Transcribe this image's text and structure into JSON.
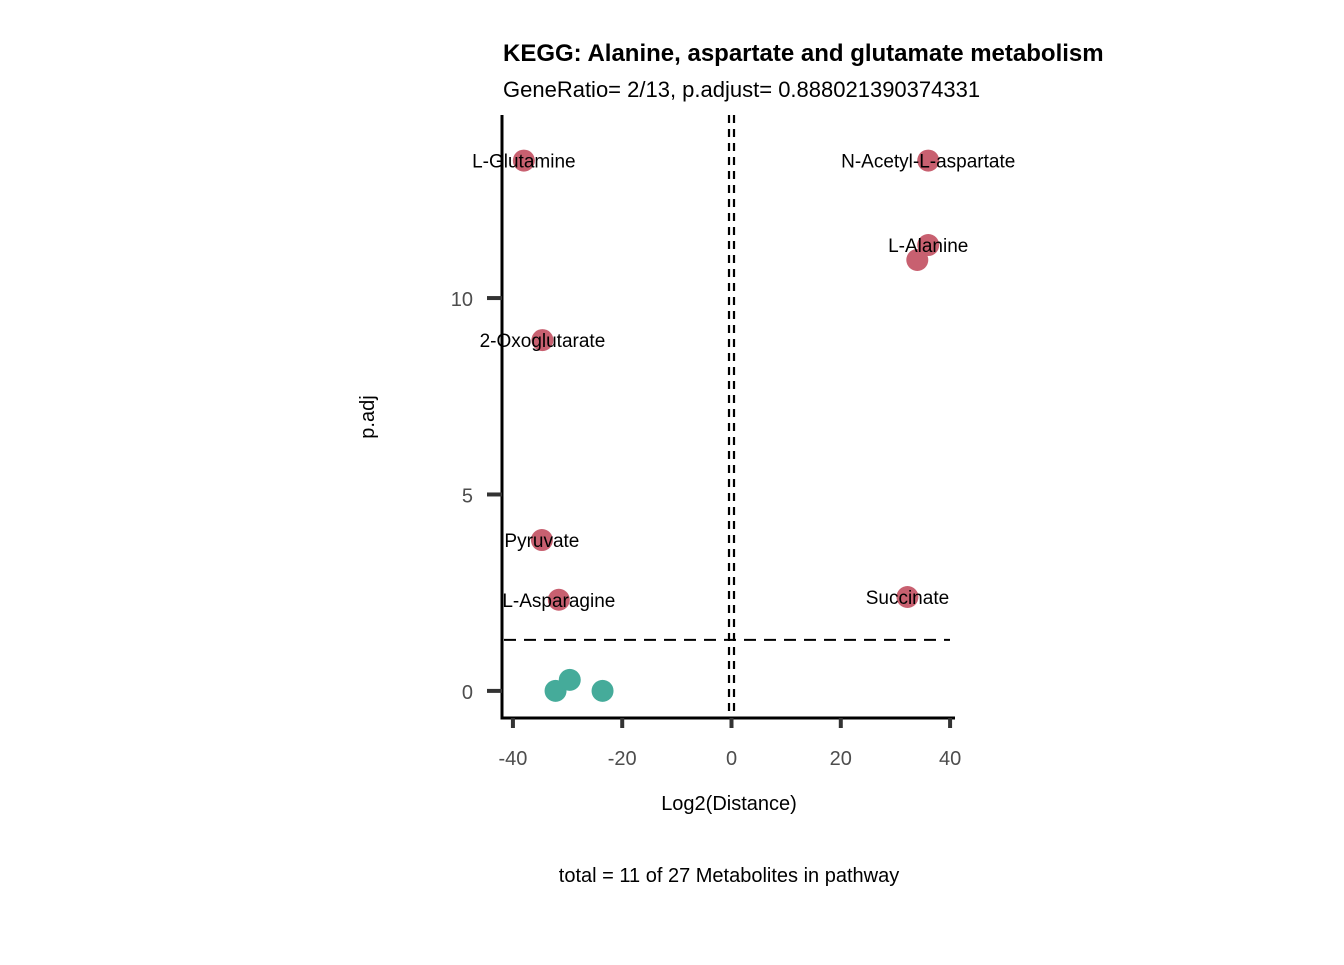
{
  "chart_data": {
    "type": "scatter",
    "title": "KEGG: Alanine, aspartate and glutamate metabolism",
    "subtitle": "GeneRatio= 2/13, p.adjust= 0.888021390374331",
    "xlabel": "Log2(Distance)",
    "ylabel": "p.adj",
    "caption": "total = 11 of 27 Metabolites in pathway",
    "xlim": [
      -42,
      40.9
    ],
    "ylim": [
      -0.69,
      14.66
    ],
    "xticks": [
      -40,
      -20,
      0,
      20,
      40
    ],
    "xtick_labels": [
      "-40",
      "-20",
      "0",
      "20",
      "40"
    ],
    "yticks": [
      0,
      5,
      10
    ],
    "ytick_labels": [
      "0",
      "5",
      "10"
    ],
    "grid": false,
    "hline": 1.3,
    "vline": 0,
    "colors": {
      "significant": "#C86070",
      "not_significant": "#45AB9A"
    },
    "points": [
      {
        "x": -38.0,
        "y": 13.5,
        "label": "L-Glutamine",
        "group": "significant"
      },
      {
        "x": 36.0,
        "y": 13.5,
        "label": "N-Acetyl-L-aspartate",
        "group": "significant"
      },
      {
        "x": 36.0,
        "y": 11.35,
        "label": "L-Alanine",
        "group": "significant"
      },
      {
        "x": 34.0,
        "y": 10.97,
        "label": "",
        "group": "significant"
      },
      {
        "x": -34.6,
        "y": 8.93,
        "label": "2-Oxoglutarate",
        "group": "significant"
      },
      {
        "x": -34.7,
        "y": 3.84,
        "label": "Pyruvate",
        "group": "significant"
      },
      {
        "x": -31.6,
        "y": 2.32,
        "label": "L-Asparagine",
        "group": "significant"
      },
      {
        "x": 32.2,
        "y": 2.39,
        "label": "Succinate",
        "group": "significant"
      },
      {
        "x": -32.2,
        "y": 0.0,
        "label": "",
        "group": "not_significant"
      },
      {
        "x": -29.6,
        "y": 0.28,
        "label": "",
        "group": "not_significant"
      },
      {
        "x": -23.6,
        "y": 0.0,
        "label": "",
        "group": "not_significant"
      }
    ]
  }
}
